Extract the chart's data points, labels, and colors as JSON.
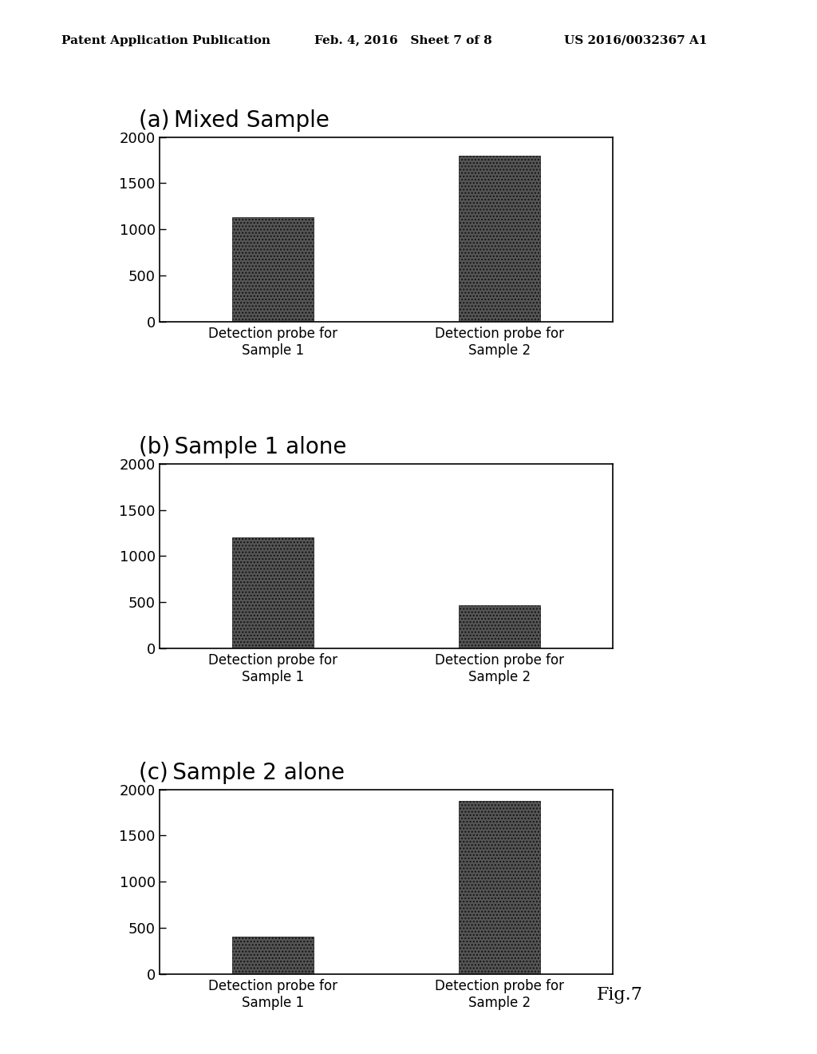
{
  "background_color": "#ffffff",
  "header_left": "Patent Application Publication",
  "header_center": "Feb. 4, 2016   Sheet 7 of 8",
  "header_right": "US 2016/0032367 A1",
  "footer": "Fig.7",
  "charts": [
    {
      "title": "(a) Mixed Sample",
      "values": [
        1130,
        1800
      ],
      "ylim": [
        0,
        2000
      ],
      "yticks": [
        0,
        500,
        1000,
        1500,
        2000
      ],
      "xlabel1": "Detection probe for\nSample 1",
      "xlabel2": "Detection probe for\nSample 2"
    },
    {
      "title": "(b) Sample 1 alone",
      "values": [
        1200,
        470
      ],
      "ylim": [
        0,
        2000
      ],
      "yticks": [
        0,
        500,
        1000,
        1500,
        2000
      ],
      "xlabel1": "Detection probe for\nSample 1",
      "xlabel2": "Detection probe for\nSample 2"
    },
    {
      "title": "(c) Sample 2 alone",
      "values": [
        400,
        1880
      ],
      "ylim": [
        0,
        2000
      ],
      "yticks": [
        0,
        500,
        1000,
        1500,
        2000
      ],
      "xlabel1": "Detection probe for\nSample 1",
      "xlabel2": "Detection probe for\nSample 2"
    }
  ],
  "bar_color": "#555555",
  "bar_hatch": "....",
  "bar_width": 0.18,
  "title_fontsize": 20,
  "tick_fontsize": 13,
  "xlabel_fontsize": 12,
  "header_fontsize": 11,
  "footer_fontsize": 16
}
